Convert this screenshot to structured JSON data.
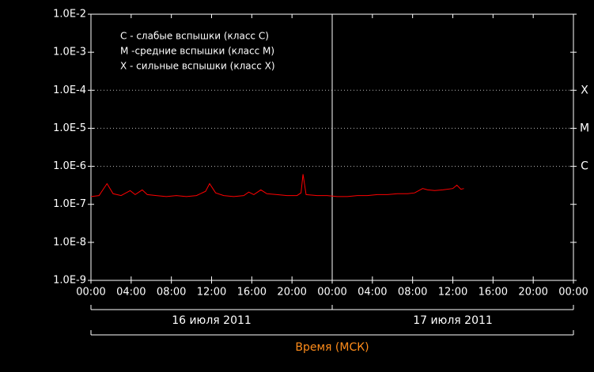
{
  "chart_data": {
    "type": "line",
    "log_y": true,
    "ylim": [
      1e-09,
      0.01
    ],
    "yticks": [
      {
        "value": 1e-09,
        "label": "1.0E-9"
      },
      {
        "value": 1e-08,
        "label": "1.0E-8"
      },
      {
        "value": 1e-07,
        "label": "1.0E-7"
      },
      {
        "value": 1e-06,
        "label": "1.0E-6"
      },
      {
        "value": 1e-05,
        "label": "1.0E-5"
      },
      {
        "value": 0.0001,
        "label": "1.0E-4"
      },
      {
        "value": 0.001,
        "label": "1.0E-3"
      },
      {
        "value": 0.01,
        "label": "1.0E-2"
      }
    ],
    "xlim": [
      0,
      48
    ],
    "xticks": [
      {
        "value": 0,
        "label": "00:00"
      },
      {
        "value": 4,
        "label": "04:00"
      },
      {
        "value": 8,
        "label": "08:00"
      },
      {
        "value": 12,
        "label": "12:00"
      },
      {
        "value": 16,
        "label": "16:00"
      },
      {
        "value": 20,
        "label": "20:00"
      },
      {
        "value": 24,
        "label": "00:00"
      },
      {
        "value": 28,
        "label": "04:00"
      },
      {
        "value": 32,
        "label": "08:00"
      },
      {
        "value": 36,
        "label": "12:00"
      },
      {
        "value": 40,
        "label": "16:00"
      },
      {
        "value": 44,
        "label": "20:00"
      },
      {
        "value": 48,
        "label": "00:00"
      }
    ],
    "day_boundary": 24,
    "days": [
      "16 июля 2011",
      "17 июля 2011"
    ],
    "xlabel": "Время (МСК)",
    "xlabel_color": "#ff8c1a",
    "levels": [
      {
        "value": 0.0001,
        "label": "X"
      },
      {
        "value": 1e-05,
        "label": "M"
      },
      {
        "value": 1e-06,
        "label": "C"
      }
    ],
    "annotations": [
      "C - слабые вспышки (класс C)",
      "M -средние вспышки (класс M)",
      "X - сильные вспышки (класс X)"
    ],
    "series": [
      {
        "color": "#ff0000",
        "x": [
          0,
          0.8,
          1.6,
          2.2,
          3,
          3.9,
          4.4,
          5.1,
          5.6,
          6.5,
          7.5,
          8.5,
          9.5,
          10.5,
          11.4,
          11.8,
          12.4,
          13.2,
          14.2,
          15.2,
          15.7,
          16.2,
          16.9,
          17.5,
          18.5,
          19.5,
          20.5,
          20.9,
          21.1,
          21.4,
          22.5,
          23.5,
          24.5,
          25.5,
          26.5,
          27.5,
          28.5,
          29.5,
          30.5,
          31.5,
          32.2,
          33,
          33.5,
          34.2,
          35,
          36,
          36.4,
          36.8,
          37.1
        ],
        "values": [
          1.6e-07,
          1.7e-07,
          3.5e-07,
          1.9e-07,
          1.7e-07,
          2.3e-07,
          1.8e-07,
          2.4e-07,
          1.8e-07,
          1.7e-07,
          1.6e-07,
          1.7e-07,
          1.6e-07,
          1.7e-07,
          2.2e-07,
          3.5e-07,
          2e-07,
          1.7e-07,
          1.6e-07,
          1.7e-07,
          2.1e-07,
          1.8e-07,
          2.4e-07,
          1.9e-07,
          1.8e-07,
          1.7e-07,
          1.7e-07,
          2e-07,
          6.2e-07,
          1.8e-07,
          1.7e-07,
          1.7e-07,
          1.6e-07,
          1.6e-07,
          1.7e-07,
          1.7e-07,
          1.8e-07,
          1.8e-07,
          1.9e-07,
          1.9e-07,
          2e-07,
          2.6e-07,
          2.4e-07,
          2.3e-07,
          2.4e-07,
          2.6e-07,
          3.2e-07,
          2.5e-07,
          2.6e-07
        ]
      }
    ]
  }
}
